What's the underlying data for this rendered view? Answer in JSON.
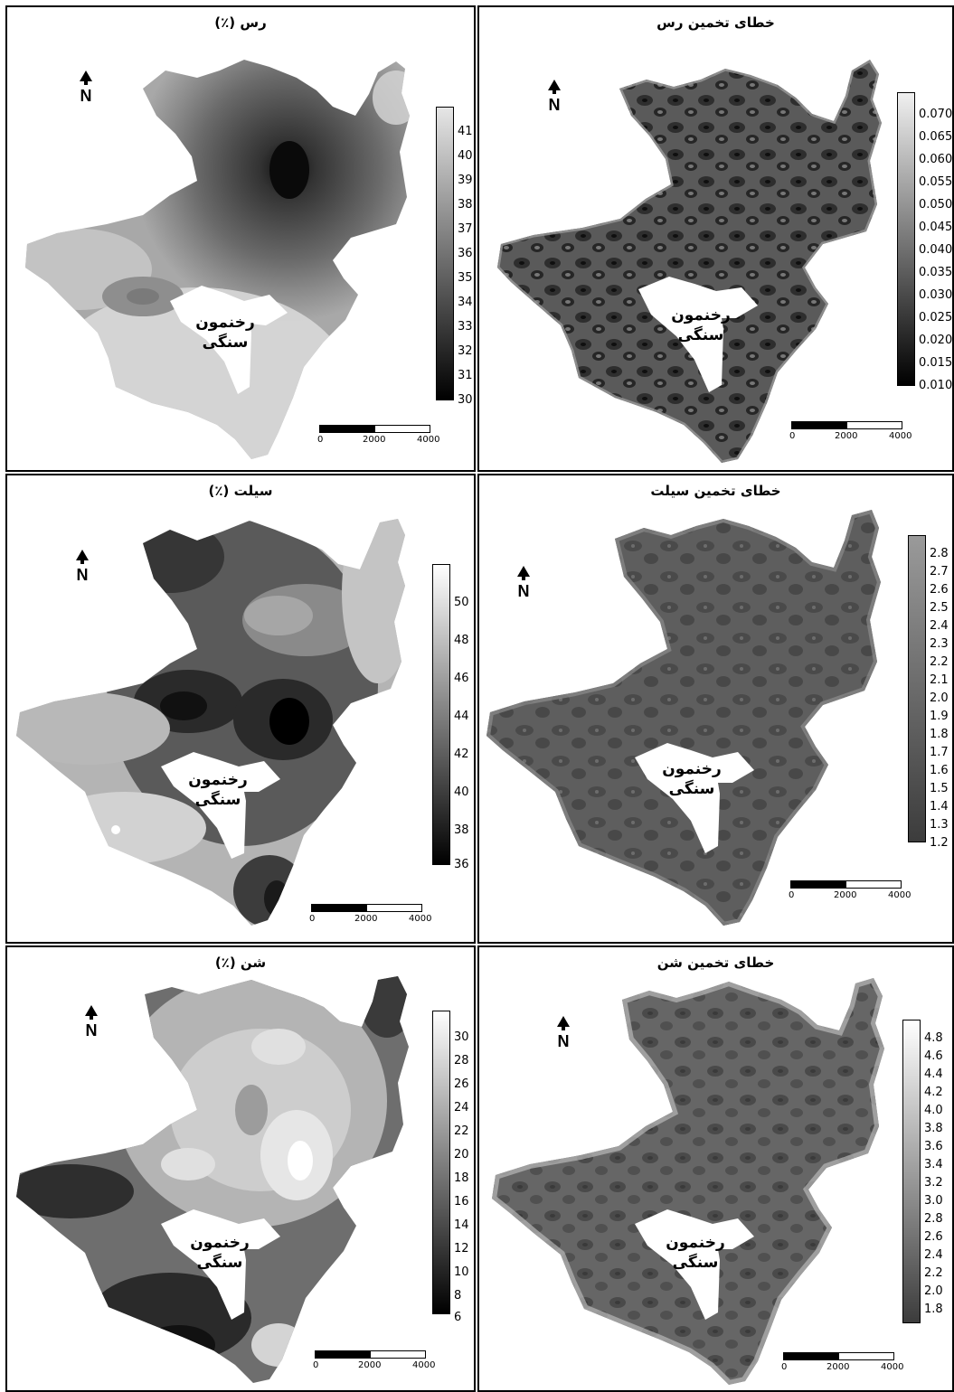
{
  "panels": [
    {
      "id": "clay",
      "title": "رس (٪)",
      "legend_ticks": [
        "41",
        "40",
        "39",
        "38",
        "37",
        "36",
        "35",
        "34",
        "33",
        "32",
        "31",
        "30"
      ],
      "legend_top_color": "#e6e6e6",
      "legend_bottom_color": "#000000",
      "rock_label": [
        "رخنمون",
        "سنگی"
      ],
      "scale": [
        "0",
        "2000",
        "4000"
      ]
    },
    {
      "id": "clay-error",
      "title": "خطای تخمین رس",
      "legend_ticks": [
        "0.070",
        "0.065",
        "0.060",
        "0.055",
        "0.050",
        "0.045",
        "0.040",
        "0.035",
        "0.030",
        "0.025",
        "0.020",
        "0.015",
        "0.010"
      ],
      "legend_top_color": "#f0f0f0",
      "legend_bottom_color": "#000000",
      "rock_label": [
        "رخنمون",
        "سنگی"
      ],
      "scale": [
        "0",
        "2000",
        "4000"
      ]
    },
    {
      "id": "silt",
      "title": "سیلت (٪)",
      "legend_ticks": [
        "50",
        "48",
        "46",
        "44",
        "42",
        "40",
        "38",
        "36"
      ],
      "legend_top_color": "#ffffff",
      "legend_bottom_color": "#000000",
      "rock_label": [
        "رخنمون",
        "سنگی"
      ],
      "scale": [
        "0",
        "2000",
        "4000"
      ]
    },
    {
      "id": "silt-error",
      "title": "خطای تخمین سیلت",
      "legend_ticks": [
        "2.8",
        "2.7",
        "2.6",
        "2.5",
        "2.4",
        "2.3",
        "2.2",
        "2.1",
        "2.0",
        "1.9",
        "1.8",
        "1.7",
        "1.6",
        "1.5",
        "1.4",
        "1.3",
        "1.2"
      ],
      "legend_top_color": "#9a9a9a",
      "legend_bottom_color": "#3c3c3c",
      "rock_label": [
        "رخنمون",
        "سنگی"
      ],
      "scale": [
        "0",
        "2000",
        "4000"
      ]
    },
    {
      "id": "sand",
      "title": "شن (٪)",
      "legend_ticks": [
        "30",
        "28",
        "26",
        "24",
        "22",
        "20",
        "18",
        "16",
        "14",
        "12",
        "10",
        "8",
        "6"
      ],
      "legend_top_color": "#ffffff",
      "legend_bottom_color": "#000000",
      "rock_label": [
        "رخنمون",
        "سنگی"
      ],
      "scale": [
        "0",
        "2000",
        "4000"
      ]
    },
    {
      "id": "sand-error",
      "title": "خطای تخمین شن",
      "legend_ticks": [
        "4.8",
        "4.6",
        "4.4",
        "4.2",
        "4.0",
        "3.8",
        "3.6",
        "3.4",
        "3.2",
        "3.0",
        "2.8",
        "2.6",
        "2.4",
        "2.2",
        "2.0",
        "1.8"
      ],
      "legend_top_color": "#ffffff",
      "legend_bottom_color": "#3c3c3c",
      "rock_label": [
        "رخنمون",
        "سنگی"
      ],
      "scale": [
        "0",
        "2000",
        "4000"
      ]
    }
  ],
  "north_letter": "N"
}
